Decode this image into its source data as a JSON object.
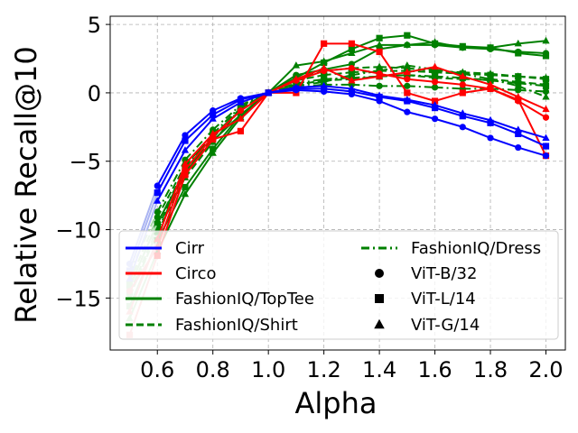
{
  "chart_data": {
    "type": "line",
    "xlabel": "Alpha",
    "ylabel": "Relative Recall@10",
    "xlim": [
      0.43,
      2.07
    ],
    "ylim": [
      -18.8,
      5.6
    ],
    "x_ticks": [
      0.6,
      0.8,
      1.0,
      1.2,
      1.4,
      1.6,
      1.8,
      2.0
    ],
    "x_tick_labels": [
      "0.6",
      "0.8",
      "1.0",
      "1.2",
      "1.4",
      "1.6",
      "1.8",
      "2.0"
    ],
    "y_ticks": [
      5,
      0,
      -5,
      -10,
      -15
    ],
    "y_tick_labels": [
      "5",
      "0",
      "−5",
      "−10",
      "−15"
    ],
    "grid": true,
    "legend_position": "lower-left",
    "x": [
      0.5,
      0.6,
      0.7,
      0.8,
      0.9,
      1.0,
      1.1,
      1.2,
      1.3,
      1.4,
      1.5,
      1.6,
      1.7,
      1.8,
      1.9,
      2.0
    ],
    "x_faded_until": 0.6,
    "datasets": [
      {
        "name": "Cirr",
        "color": "#0000ff",
        "faded_color": "#aab4f2",
        "linestyle": "solid"
      },
      {
        "name": "Circo",
        "color": "#ff0000",
        "faded_color": "#f4aaaa",
        "linestyle": "solid"
      },
      {
        "name": "FashionIQ/TopTee",
        "color": "#008000",
        "faded_color": "#a8d8a8",
        "linestyle": "solid"
      },
      {
        "name": "FashionIQ/Shirt",
        "color": "#008000",
        "faded_color": "#a8d8a8",
        "linestyle": "dashed"
      },
      {
        "name": "FashionIQ/Dress",
        "color": "#008000",
        "faded_color": "#a8d8a8",
        "linestyle": "dashdot"
      }
    ],
    "models": [
      {
        "name": "ViT-B/32",
        "marker": "circle"
      },
      {
        "name": "ViT-L/14",
        "marker": "square"
      },
      {
        "name": "ViT-G/14",
        "marker": "triangle"
      }
    ],
    "series": [
      {
        "dataset": "Cirr",
        "model": "ViT-B/32",
        "values": [
          -12.5,
          -6.8,
          -3.1,
          -1.3,
          -0.4,
          0.0,
          0.2,
          0.1,
          -0.1,
          -0.6,
          -1.4,
          -1.9,
          -2.5,
          -3.3,
          -4.0,
          -4.6
        ]
      },
      {
        "dataset": "Cirr",
        "model": "ViT-L/14",
        "values": [
          -13.0,
          -7.3,
          -3.5,
          -1.6,
          -0.5,
          0.0,
          0.3,
          0.3,
          0.1,
          -0.3,
          -0.6,
          -1.1,
          -1.7,
          -2.2,
          -3.0,
          -3.9
        ]
      },
      {
        "dataset": "Cirr",
        "model": "ViT-G/14",
        "values": [
          -13.6,
          -7.9,
          -4.2,
          -1.9,
          -0.7,
          0.0,
          0.4,
          0.5,
          0.3,
          -0.2,
          -0.5,
          -0.9,
          -1.5,
          -2.0,
          -2.7,
          -3.3
        ]
      },
      {
        "dataset": "Circo",
        "model": "ViT-B/32",
        "values": [
          -14.5,
          -11.3,
          -5.6,
          -3.2,
          -1.3,
          0.0,
          0.9,
          1.6,
          1.8,
          1.4,
          1.0,
          0.8,
          0.6,
          0.3,
          -0.6,
          -1.8
        ]
      },
      {
        "dataset": "Circo",
        "model": "ViT-L/14",
        "values": [
          -17.7,
          -11.9,
          -6.0,
          -3.4,
          -2.8,
          0.0,
          0.0,
          3.6,
          3.6,
          3.0,
          0.0,
          -0.6,
          0.0,
          0.3,
          -0.5,
          -4.6
        ]
      },
      {
        "dataset": "Circo",
        "model": "ViT-G/14",
        "values": [
          -16.0,
          -10.7,
          -5.2,
          -3.0,
          -1.9,
          0.0,
          1.0,
          1.8,
          0.9,
          1.2,
          1.5,
          1.9,
          1.2,
          0.6,
          -0.3,
          -1.2
        ]
      },
      {
        "dataset": "FashionIQ/TopTee",
        "model": "ViT-B/32",
        "values": [
          -14.2,
          -9.5,
          -5.8,
          -3.5,
          -1.6,
          0.0,
          1.3,
          1.7,
          2.1,
          3.2,
          3.5,
          3.5,
          3.3,
          3.2,
          3.0,
          2.9
        ]
      },
      {
        "dataset": "FashionIQ/TopTee",
        "model": "ViT-L/14",
        "values": [
          -15.6,
          -10.8,
          -6.9,
          -4.1,
          -1.6,
          0.0,
          1.1,
          2.2,
          3.2,
          4.0,
          4.2,
          3.6,
          3.4,
          3.3,
          2.9,
          2.7
        ]
      },
      {
        "dataset": "FashionIQ/TopTee",
        "model": "ViT-G/14",
        "values": [
          -16.5,
          -11.6,
          -7.4,
          -4.4,
          -1.8,
          0.0,
          2.0,
          2.3,
          2.9,
          3.5,
          3.5,
          3.7,
          3.3,
          3.3,
          3.6,
          3.8
        ]
      },
      {
        "dataset": "FashionIQ/Shirt",
        "model": "ViT-B/32",
        "values": [
          -13.8,
          -9.1,
          -5.3,
          -3.1,
          -1.3,
          0.0,
          0.6,
          0.9,
          1.0,
          1.2,
          1.3,
          1.1,
          1.0,
          1.0,
          0.8,
          0.6
        ]
      },
      {
        "dataset": "FashionIQ/Shirt",
        "model": "ViT-L/14",
        "values": [
          -14.6,
          -9.9,
          -5.7,
          -3.3,
          -1.1,
          0.0,
          0.9,
          1.3,
          1.5,
          1.6,
          1.6,
          1.5,
          1.4,
          1.3,
          1.2,
          1.0
        ]
      },
      {
        "dataset": "FashionIQ/Shirt",
        "model": "ViT-G/14",
        "values": [
          -14.9,
          -10.2,
          -6.2,
          -3.6,
          -1.2,
          0.0,
          1.0,
          1.6,
          1.8,
          1.9,
          1.8,
          1.6,
          1.5,
          1.4,
          1.2,
          1.1
        ]
      },
      {
        "dataset": "FashionIQ/Dress",
        "model": "ViT-B/32",
        "values": [
          -13.2,
          -8.7,
          -4.9,
          -2.7,
          -0.9,
          0.0,
          0.4,
          0.6,
          0.6,
          0.5,
          0.5,
          0.4,
          0.3,
          0.3,
          0.2,
          0.1
        ]
      },
      {
        "dataset": "FashionIQ/Dress",
        "model": "ViT-L/14",
        "values": [
          -14.1,
          -9.6,
          -5.5,
          -3.0,
          -1.0,
          0.0,
          0.7,
          1.0,
          1.1,
          1.2,
          1.3,
          1.2,
          1.1,
          0.9,
          0.7,
          0.5
        ]
      },
      {
        "dataset": "FashionIQ/Dress",
        "model": "ViT-G/14",
        "values": [
          -14.9,
          -10.1,
          -5.9,
          -3.2,
          -1.2,
          0.0,
          0.5,
          0.8,
          1.3,
          1.6,
          2.0,
          1.7,
          1.4,
          1.0,
          0.5,
          -0.3
        ]
      }
    ]
  }
}
